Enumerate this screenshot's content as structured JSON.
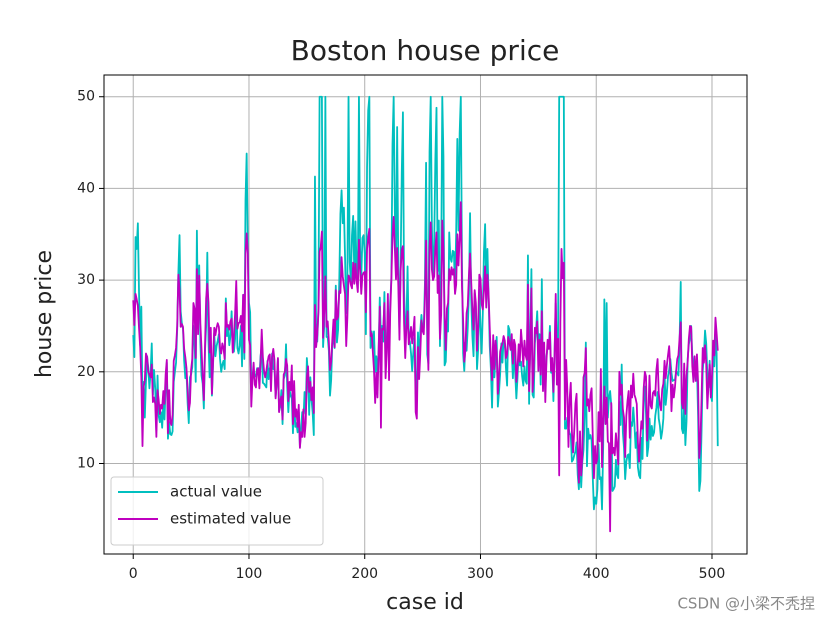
{
  "chart_data": {
    "type": "line",
    "title": "Boston house price",
    "x_label": "case id",
    "y_label": "house price",
    "watermark": "CSDN @小梁不秃捏",
    "xlim": [
      -25.25,
      530.25
    ],
    "ylim": [
      0.13,
      52.37
    ],
    "xticks": [
      0,
      100,
      200,
      300,
      400,
      500
    ],
    "yticks": [
      10,
      20,
      30,
      40,
      50
    ],
    "grid": true,
    "legend": "lower left",
    "series": [
      {
        "name": "actual value",
        "color": "#00bfbf",
        "values": [
          24.0,
          21.6,
          34.7,
          33.4,
          36.2,
          28.7,
          22.9,
          27.1,
          16.5,
          18.9,
          15.0,
          18.9,
          21.7,
          20.4,
          18.2,
          19.9,
          23.1,
          17.5,
          20.2,
          18.2,
          13.6,
          19.6,
          15.2,
          14.5,
          15.6,
          13.9,
          16.6,
          14.8,
          18.4,
          21.0,
          12.7,
          14.5,
          13.2,
          13.1,
          13.5,
          18.9,
          20.0,
          21.0,
          24.7,
          30.8,
          34.9,
          26.6,
          25.3,
          24.7,
          21.2,
          19.3,
          20.0,
          16.6,
          14.4,
          19.4,
          19.7,
          20.5,
          25.0,
          23.4,
          18.9,
          35.4,
          24.7,
          31.6,
          23.3,
          19.6,
          18.7,
          16.0,
          22.2,
          25.0,
          33.0,
          23.5,
          19.4,
          22.0,
          17.4,
          20.9,
          24.2,
          21.7,
          22.8,
          23.4,
          24.1,
          21.4,
          20.0,
          20.8,
          21.2,
          20.3,
          28.0,
          23.9,
          24.8,
          22.9,
          23.9,
          26.6,
          22.5,
          22.2,
          23.6,
          28.7,
          22.6,
          22.0,
          22.9,
          25.0,
          20.6,
          28.4,
          21.4,
          38.7,
          43.8,
          33.2,
          27.5,
          26.5,
          18.6,
          19.3,
          20.1,
          19.5,
          19.5,
          20.4,
          19.8,
          19.4,
          21.7,
          22.8,
          18.8,
          18.7,
          18.5,
          18.3,
          21.2,
          19.2,
          20.4,
          19.3,
          22.0,
          20.3,
          20.5,
          17.3,
          18.8,
          21.4,
          15.7,
          16.2,
          18.0,
          14.3,
          19.2,
          19.6,
          23.0,
          18.4,
          15.6,
          18.1,
          17.4,
          17.1,
          13.3,
          17.8,
          14.0,
          14.4,
          13.4,
          15.6,
          11.8,
          13.8,
          15.6,
          14.6,
          17.8,
          15.4,
          21.5,
          19.6,
          15.3,
          19.4,
          17.0,
          15.6,
          13.1,
          41.3,
          24.3,
          23.3,
          27.0,
          50.0,
          50.0,
          50.0,
          22.7,
          25.0,
          50.0,
          23.8,
          23.8,
          22.3,
          17.4,
          19.1,
          23.1,
          23.6,
          22.6,
          29.4,
          23.2,
          24.6,
          29.9,
          37.2,
          39.8,
          36.2,
          37.9,
          32.5,
          26.4,
          29.6,
          50.0,
          32.0,
          29.8,
          34.9,
          37.0,
          30.5,
          36.4,
          31.1,
          29.1,
          50.0,
          33.3,
          30.3,
          34.6,
          34.9,
          32.9,
          24.1,
          42.3,
          48.5,
          50.0,
          22.6,
          24.4,
          22.5,
          24.4,
          20.0,
          21.7,
          19.3,
          22.4,
          28.1,
          23.7,
          25.0,
          23.3,
          28.7,
          21.5,
          23.0,
          26.7,
          21.7,
          27.5,
          30.1,
          44.8,
          50.0,
          37.6,
          31.6,
          46.7,
          31.5,
          24.3,
          31.7,
          41.7,
          48.3,
          29.0,
          24.0,
          25.1,
          31.5,
          23.7,
          23.3,
          22.0,
          20.1,
          22.2,
          23.7,
          17.6,
          18.5,
          24.3,
          20.5,
          24.5,
          26.2,
          24.4,
          24.8,
          29.6,
          42.8,
          21.9,
          20.9,
          44.0,
          50.0,
          36.0,
          30.1,
          33.8,
          43.1,
          48.8,
          31.0,
          36.5,
          22.8,
          30.7,
          50.0,
          43.5,
          20.7,
          21.1,
          25.2,
          24.4,
          35.2,
          32.4,
          32.0,
          33.2,
          33.1,
          29.1,
          35.1,
          45.4,
          35.4,
          46.0,
          50.0,
          32.2,
          22.0,
          20.1,
          23.2,
          22.3,
          24.8,
          28.5,
          37.3,
          27.9,
          23.9,
          21.7,
          28.6,
          27.1,
          20.3,
          22.5,
          29.0,
          24.8,
          22.0,
          26.4,
          33.1,
          36.1,
          28.4,
          33.4,
          28.2,
          22.8,
          20.3,
          16.1,
          22.1,
          19.4,
          21.6,
          23.8,
          16.2,
          17.8,
          19.8,
          23.1,
          21.0,
          23.8,
          23.1,
          20.4,
          18.5,
          25.0,
          24.6,
          23.0,
          22.2,
          19.3,
          22.6,
          19.8,
          17.1,
          19.4,
          22.2,
          20.7,
          21.1,
          19.5,
          18.5,
          20.6,
          19.0,
          18.7,
          32.7,
          16.5,
          23.9,
          31.2,
          17.5,
          17.2,
          23.1,
          24.5,
          26.6,
          22.9,
          24.1,
          18.6,
          30.1,
          18.2,
          20.6,
          17.8,
          21.7,
          22.7,
          22.6,
          25.0,
          19.9,
          20.8,
          16.8,
          21.9,
          27.5,
          21.9,
          23.1,
          50.0,
          50.0,
          50.0,
          50.0,
          50.0,
          13.8,
          13.8,
          15.0,
          13.9,
          13.3,
          13.1,
          10.2,
          10.4,
          10.9,
          11.3,
          12.3,
          8.8,
          7.2,
          10.5,
          7.4,
          10.2,
          11.5,
          15.1,
          23.2,
          9.7,
          13.8,
          12.7,
          13.1,
          12.5,
          8.5,
          5.0,
          6.3,
          5.6,
          7.2,
          12.1,
          8.3,
          8.5,
          5.0,
          11.9,
          27.9,
          17.2,
          27.5,
          15.0,
          17.2,
          17.9,
          16.3,
          7.0,
          7.2,
          7.5,
          10.4,
          8.8,
          8.4,
          16.7,
          14.2,
          20.8,
          13.4,
          11.7,
          8.3,
          10.2,
          10.9,
          11.0,
          9.5,
          14.5,
          14.1,
          16.1,
          14.3,
          11.7,
          13.4,
          9.6,
          8.7,
          8.4,
          12.8,
          10.5,
          17.1,
          18.4,
          15.4,
          10.8,
          11.8,
          14.9,
          12.6,
          14.1,
          13.0,
          13.4,
          15.2,
          16.1,
          17.8,
          14.9,
          14.1,
          12.7,
          13.5,
          14.9,
          20.0,
          16.4,
          17.7,
          19.5,
          20.2,
          21.4,
          19.9,
          19.0,
          19.1,
          19.1,
          20.1,
          19.9,
          19.6,
          23.2,
          29.8,
          13.8,
          13.3,
          16.7,
          12.0,
          14.6,
          21.4,
          23.0,
          23.7,
          25.0,
          21.8,
          20.6,
          21.2,
          19.1,
          20.6,
          15.2,
          7.0,
          8.1,
          13.6,
          20.1,
          21.8,
          24.5,
          23.1,
          19.7,
          18.3,
          21.2,
          17.5,
          16.8,
          22.4,
          20.6,
          23.9,
          22.0,
          11.9
        ]
      },
      {
        "name": "estimated value",
        "color": "#bf00bf",
        "values": [
          27.8,
          25.1,
          28.5,
          27.9,
          27.2,
          24.8,
          22.7,
          19.4,
          11.9,
          18.4,
          19.0,
          22.0,
          21.6,
          20.0,
          19.7,
          19.4,
          20.8,
          16.7,
          17.2,
          16.5,
          12.9,
          18.0,
          16.9,
          15.4,
          16.4,
          16.0,
          17.9,
          16.5,
          19.7,
          21.3,
          13.3,
          18.0,
          14.5,
          14.2,
          15.3,
          21.2,
          21.8,
          22.6,
          25.0,
          30.6,
          29.0,
          24.9,
          25.2,
          24.9,
          22.5,
          21.6,
          20.4,
          18.0,
          15.8,
          16.6,
          20.2,
          21.4,
          27.5,
          26.9,
          21.5,
          31.2,
          24.1,
          30.5,
          25.3,
          22.5,
          19.4,
          16.9,
          22.7,
          28.0,
          29.6,
          27.6,
          22.1,
          24.8,
          17.6,
          21.3,
          24.8,
          24.0,
          24.8,
          25.3,
          24.9,
          22.6,
          22.0,
          23.1,
          22.6,
          21.4,
          27.5,
          24.9,
          25.1,
          24.6,
          25.5,
          25.8,
          22.1,
          24.0,
          26.3,
          29.9,
          24.7,
          25.3,
          25.4,
          26.1,
          24.4,
          28.4,
          22.1,
          32.9,
          35.1,
          33.0,
          23.5,
          22.9,
          16.2,
          19.2,
          21.0,
          18.6,
          18.3,
          20.2,
          20.4,
          18.2,
          21.0,
          24.6,
          21.6,
          20.1,
          19.4,
          20.1,
          21.0,
          21.7,
          21.9,
          17.9,
          21.6,
          22.5,
          21.3,
          17.1,
          18.9,
          21.5,
          15.6,
          16.8,
          17.3,
          14.8,
          19.7,
          20.0,
          21.4,
          20.7,
          16.8,
          18.9,
          18.0,
          20.7,
          14.3,
          19.0,
          15.1,
          15.9,
          14.0,
          16.4,
          11.7,
          13.4,
          12.9,
          15.9,
          12.9,
          14.4,
          19.4,
          20.6,
          17.8,
          18.9,
          16.9,
          18.3,
          15.5,
          27.3,
          22.7,
          24.0,
          26.5,
          33.1,
          33.6,
          35.3,
          23.7,
          26.5,
          30.4,
          24.9,
          25.5,
          23.3,
          20.2,
          21.1,
          23.5,
          25.7,
          22.7,
          28.9,
          25.7,
          26.0,
          28.8,
          28.6,
          32.5,
          30.4,
          29.4,
          28.5,
          22.8,
          25.9,
          30.5,
          30.2,
          29.5,
          29.1,
          31.9,
          29.6,
          31.8,
          29.9,
          28.7,
          34.4,
          31.3,
          28.5,
          30.5,
          30.8,
          30.9,
          26.5,
          33.4,
          34.6,
          35.6,
          23.9,
          24.2,
          22.2,
          20.2,
          16.6,
          19.9,
          17.2,
          22.1,
          27.1,
          13.9,
          24.7,
          24.6,
          27.5,
          19.3,
          22.2,
          28.5,
          19.1,
          26.3,
          30.1,
          34.8,
          36.9,
          33.5,
          30.1,
          33.5,
          29.4,
          23.5,
          31.0,
          33.3,
          33.7,
          25.3,
          21.5,
          24.9,
          26.6,
          23.0,
          23.8,
          24.9,
          23.1,
          24.5,
          26.0,
          15.6,
          14.9,
          22.7,
          19.2,
          22.0,
          25.6,
          24.5,
          24.1,
          28.0,
          34.3,
          25.1,
          20.2,
          33.5,
          36.3,
          31.2,
          30.0,
          30.4,
          33.5,
          35.2,
          28.6,
          30.5,
          23.6,
          26.2,
          36.5,
          33.4,
          26.0,
          22.4,
          26.9,
          27.5,
          31.2,
          30.0,
          31.4,
          30.6,
          31.2,
          28.5,
          29.5,
          35.0,
          31.6,
          34.7,
          38.5,
          29.4,
          25.6,
          21.1,
          22.4,
          26.4,
          27.2,
          30.5,
          32.9,
          29.8,
          26.7,
          24.6,
          28.9,
          27.5,
          22.3,
          24.8,
          30.6,
          30.2,
          27.4,
          26.8,
          28.9,
          31.5,
          27.0,
          30.6,
          28.5,
          24.8,
          21.3,
          19.1,
          24.0,
          20.3,
          23.4,
          22.2,
          17.6,
          19.7,
          22.2,
          22.8,
          23.1,
          23.9,
          23.4,
          21.5,
          21.9,
          23.8,
          23.2,
          22.4,
          24.1,
          20.9,
          23.5,
          22.9,
          18.9,
          20.4,
          23.0,
          21.1,
          24.6,
          22.9,
          20.6,
          23.4,
          21.8,
          21.3,
          29.5,
          17.9,
          22.3,
          29.1,
          17.8,
          20.1,
          24.8,
          24.2,
          25.5,
          20.1,
          23.5,
          19.7,
          26.6,
          17.9,
          23.2,
          16.7,
          21.2,
          23.5,
          22.5,
          24.3,
          20.1,
          21.5,
          17.8,
          21.8,
          28.5,
          18.6,
          23.6,
          8.7,
          25.4,
          33.4,
          30.2,
          31.9,
          14.8,
          21.3,
          18.1,
          11.8,
          17.0,
          18.8,
          13.4,
          11.2,
          13.6,
          16.5,
          17.6,
          11.8,
          7.9,
          13.5,
          8.7,
          10.9,
          19.4,
          19.9,
          22.6,
          16.3,
          17.0,
          15.7,
          17.5,
          18.2,
          13.0,
          8.4,
          11.9,
          10.0,
          10.6,
          15.6,
          12.4,
          20.3,
          9.6,
          14.7,
          18.4,
          14.3,
          17.2,
          12.4,
          12.2,
          2.6,
          16.6,
          11.1,
          11.7,
          10.9,
          13.3,
          11.8,
          9.9,
          20.0,
          17.5,
          18.6,
          15.9,
          15.0,
          10.7,
          15.2,
          16.8,
          17.9,
          12.8,
          18.5,
          17.2,
          19.8,
          17.5,
          17.1,
          16.5,
          12.3,
          10.2,
          12.7,
          14.6,
          13.8,
          18.2,
          20.0,
          19.5,
          12.5,
          15.1,
          19.6,
          16.3,
          16.0,
          17.7,
          17.9,
          17.4,
          20.2,
          21.4,
          17.7,
          16.4,
          15.8,
          18.1,
          18.7,
          21.2,
          19.3,
          20.7,
          21.8,
          22.8,
          20.5,
          15.7,
          18.6,
          17.2,
          18.3,
          20.0,
          21.4,
          21.8,
          23.7,
          25.4,
          16.6,
          16.0,
          20.9,
          15.4,
          19.6,
          21.1,
          23.6,
          25.0,
          24.9,
          20.6,
          18.9,
          21.7,
          19.0,
          21.9,
          18.8,
          10.6,
          12.3,
          17.1,
          22.6,
          21.0,
          22.9,
          21.0,
          16.0,
          18.7,
          20.8,
          17.2,
          19.7,
          23.4,
          21.8,
          25.9,
          24.2,
          22.3
        ]
      }
    ]
  }
}
